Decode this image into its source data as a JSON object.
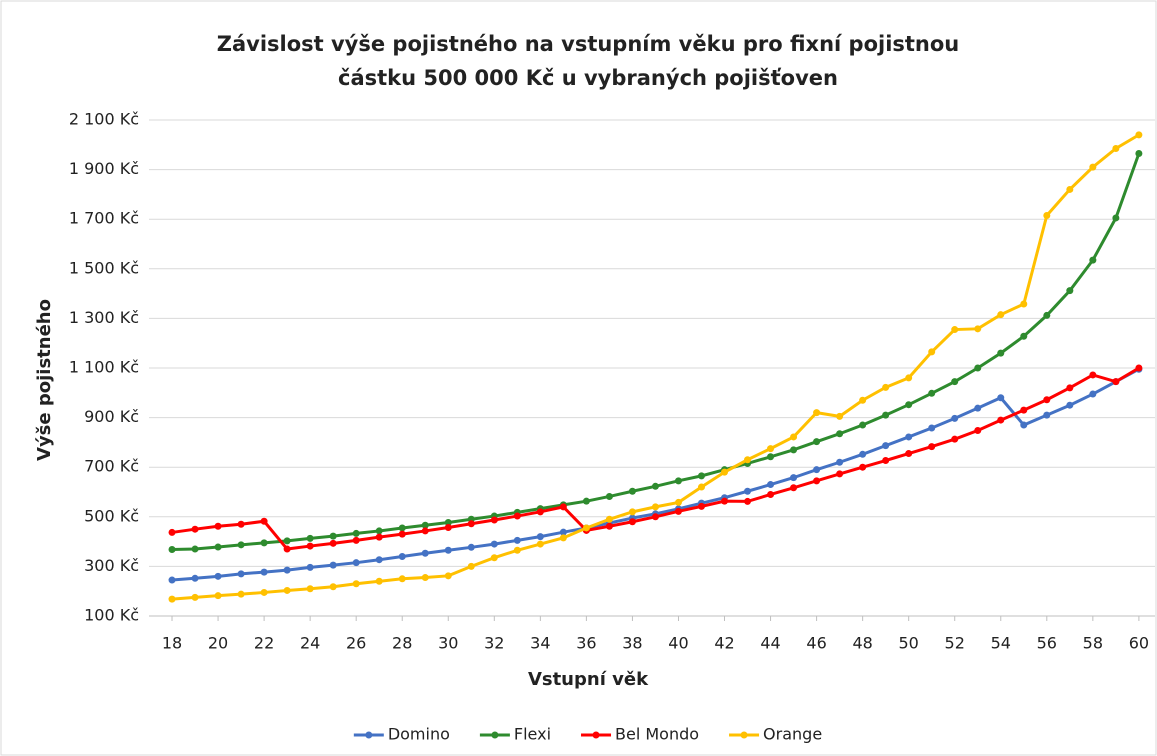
{
  "chart_data": {
    "type": "line",
    "title": [
      "Závislost výše pojistného na vstupním věku pro fixní pojistnou",
      "částku 500 000 Kč u vybraných pojišťoven"
    ],
    "x_label": "Vstupní věk",
    "y_label": "Výše pojistného",
    "x": [
      18,
      19,
      20,
      21,
      22,
      23,
      24,
      25,
      26,
      27,
      28,
      29,
      30,
      31,
      32,
      33,
      34,
      35,
      36,
      37,
      38,
      39,
      40,
      41,
      42,
      43,
      44,
      45,
      46,
      47,
      48,
      49,
      50,
      51,
      52,
      53,
      54,
      55,
      56,
      57,
      58,
      59,
      60
    ],
    "xlim": [
      17,
      60.7
    ],
    "xticks": [
      18,
      20,
      22,
      24,
      26,
      28,
      30,
      32,
      34,
      36,
      38,
      40,
      42,
      44,
      46,
      48,
      50,
      52,
      54,
      56,
      58,
      60
    ],
    "ylim": [
      100,
      2100
    ],
    "yticks": [
      {
        "value": 100,
        "label": "100 Kč"
      },
      {
        "value": 300,
        "label": "300 Kč"
      },
      {
        "value": 500,
        "label": "500 Kč"
      },
      {
        "value": 700,
        "label": "700 Kč"
      },
      {
        "value": 900,
        "label": "900 Kč"
      },
      {
        "value": 1100,
        "label": "1 100 Kč"
      },
      {
        "value": 1300,
        "label": "1 300 Kč"
      },
      {
        "value": 1500,
        "label": "1 500 Kč"
      },
      {
        "value": 1700,
        "label": "1 700 Kč"
      },
      {
        "value": 1900,
        "label": "1 900 Kč"
      },
      {
        "value": 2100,
        "label": "2 100 Kč"
      }
    ],
    "grid": true,
    "legend": "bottom",
    "series": [
      {
        "name": "Domino",
        "color": "#4472c4",
        "values": [
          245,
          252,
          260,
          270,
          277,
          285,
          296,
          305,
          315,
          327,
          340,
          353,
          365,
          377,
          390,
          405,
          420,
          438,
          455,
          475,
          495,
          512,
          532,
          555,
          577,
          603,
          630,
          658,
          690,
          720,
          752,
          787,
          822,
          858,
          897,
          938,
          980,
          870,
          910,
          950,
          995,
          1045,
          1095
        ]
      },
      {
        "name": "Flexi",
        "color": "#2e8b2e",
        "values": [
          368,
          370,
          378,
          387,
          395,
          403,
          413,
          422,
          433,
          443,
          455,
          466,
          477,
          490,
          503,
          518,
          533,
          548,
          563,
          582,
          603,
          623,
          645,
          665,
          690,
          715,
          742,
          770,
          803,
          835,
          870,
          910,
          952,
          998,
          1045,
          1100,
          1160,
          1228,
          1312,
          1412,
          1535,
          1705,
          1965
        ]
      },
      {
        "name": "Bel Mondo",
        "color": "#ff0000",
        "values": [
          437,
          450,
          462,
          470,
          482,
          370,
          382,
          393,
          405,
          418,
          430,
          443,
          457,
          472,
          487,
          503,
          520,
          540,
          445,
          462,
          480,
          500,
          522,
          542,
          563,
          562,
          590,
          617,
          645,
          673,
          700,
          727,
          755,
          783,
          813,
          848,
          890,
          930,
          972,
          1020,
          1072,
          1045,
          1100
        ]
      },
      {
        "name": "Orange",
        "color": "#ffc000",
        "values": [
          168,
          175,
          182,
          188,
          195,
          203,
          210,
          218,
          230,
          240,
          250,
          255,
          262,
          300,
          335,
          365,
          390,
          415,
          455,
          490,
          520,
          540,
          558,
          620,
          680,
          730,
          775,
          822,
          920,
          905,
          970,
          1022,
          1060,
          1165,
          1255,
          1258,
          1315,
          1358,
          1715,
          1820,
          1910,
          1985,
          2040
        ]
      }
    ]
  }
}
